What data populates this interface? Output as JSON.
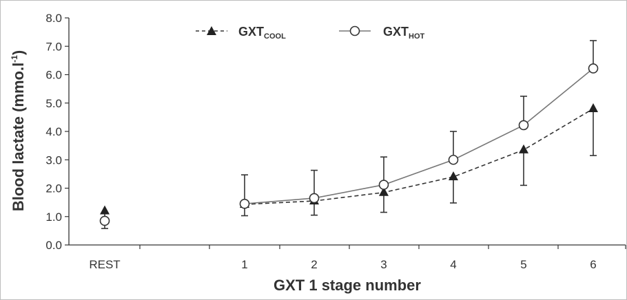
{
  "chart_data": {
    "type": "line",
    "xlabel": "GXT 1 stage number",
    "ylabel": "Blood lactate (mmo.l",
    "ylabel_sup": "-1",
    "ylabel_close": ")",
    "ylim": [
      0,
      8
    ],
    "yticks": [
      "0.0",
      "1.0",
      "2.0",
      "3.0",
      "4.0",
      "5.0",
      "6.0",
      "7.0",
      "8.0"
    ],
    "categories": [
      "REST",
      "1",
      "2",
      "3",
      "4",
      "5",
      "6"
    ],
    "legend_position": "top-center",
    "grid": false,
    "series": [
      {
        "name": "GXT",
        "name_sub": "COOL",
        "marker": "filled-triangle",
        "line_style": "dashed",
        "color": "#333333",
        "values": [
          1.2,
          1.43,
          1.55,
          1.85,
          2.4,
          3.35,
          4.8
        ],
        "errors": [
          0.62,
          0.4,
          0.5,
          0.7,
          0.92,
          1.25,
          1.65
        ],
        "error_direction": "down",
        "connect_from": 1
      },
      {
        "name": "GXT",
        "name_sub": "HOT",
        "marker": "open-circle",
        "line_style": "solid",
        "color": "#777777",
        "values": [
          0.85,
          1.45,
          1.65,
          2.12,
          3.0,
          4.22,
          6.22
        ],
        "errors": [
          0,
          1.02,
          0.98,
          0.98,
          1.0,
          1.02,
          0.98
        ],
        "error_direction": "up",
        "connect_from": 1
      }
    ]
  }
}
